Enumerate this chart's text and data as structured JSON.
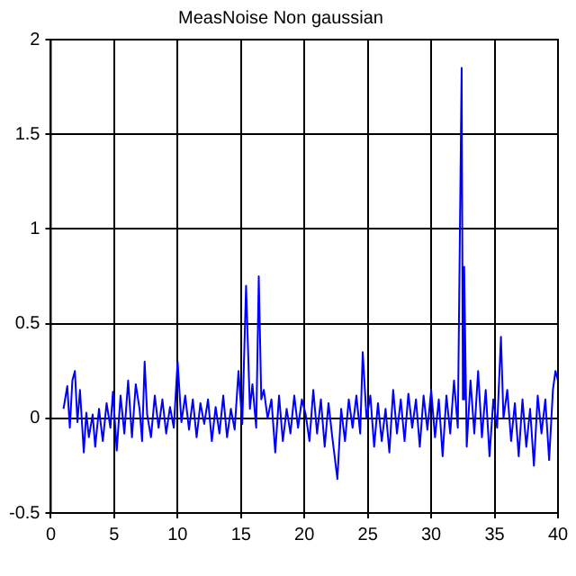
{
  "chart_data": {
    "type": "line",
    "title": "MeasNoise Non gaussian",
    "x": [
      1,
      1.3,
      1.5,
      1.7,
      1.9,
      2.1,
      2.3,
      2.6,
      2.8,
      3,
      3.3,
      3.5,
      3.8,
      4.1,
      4.4,
      4.7,
      4.9,
      5.2,
      5.5,
      5.8,
      6.1,
      6.4,
      6.7,
      7,
      7.2,
      7.4,
      7.6,
      7.9,
      8.2,
      8.5,
      8.8,
      9.1,
      9.4,
      9.7,
      10,
      10.3,
      10.6,
      10.9,
      11.2,
      11.5,
      11.8,
      12.1,
      12.4,
      12.7,
      13,
      13.3,
      13.6,
      13.9,
      14.2,
      14.5,
      14.8,
      15.1,
      15.4,
      15.7,
      15.9,
      16.2,
      16.4,
      16.6,
      16.8,
      17.1,
      17.4,
      17.7,
      18,
      18.3,
      18.6,
      18.9,
      19.2,
      19.5,
      19.8,
      20.1,
      20.4,
      20.7,
      21,
      21.3,
      21.6,
      21.9,
      22.2,
      22.6,
      22.9,
      23.2,
      23.5,
      23.8,
      24.1,
      24.4,
      24.6,
      24.9,
      25.2,
      25.5,
      25.8,
      26.1,
      26.4,
      26.7,
      27,
      27.3,
      27.6,
      27.9,
      28.2,
      28.5,
      28.8,
      29.1,
      29.4,
      29.7,
      30,
      30.3,
      30.6,
      30.9,
      31.2,
      31.5,
      31.8,
      32.1,
      32.4,
      32.5,
      32.6,
      32.8,
      33.1,
      33.4,
      33.7,
      34,
      34.3,
      34.6,
      34.9,
      35.2,
      35.5,
      35.7,
      36,
      36.3,
      36.6,
      36.9,
      37.2,
      37.5,
      37.8,
      38.1,
      38.4,
      38.7,
      39,
      39.3,
      39.6,
      39.8,
      40
    ],
    "values": [
      0.05,
      0.17,
      -0.05,
      0.2,
      0.25,
      -0.02,
      0.15,
      -0.18,
      0.03,
      -0.1,
      0.02,
      -0.15,
      0.05,
      -0.12,
      0.08,
      -0.05,
      0.14,
      -0.17,
      0.12,
      -0.08,
      0.2,
      -0.1,
      0.18,
      0.05,
      -0.12,
      0.3,
      0.02,
      -0.1,
      0.12,
      -0.05,
      0.1,
      -0.08,
      0.06,
      -0.05,
      0.3,
      -0.02,
      0.12,
      -0.06,
      0.1,
      -0.1,
      0.08,
      -0.03,
      0.1,
      -0.12,
      0.06,
      -0.08,
      0.12,
      -0.1,
      0.05,
      -0.06,
      0.25,
      -0.03,
      0.7,
      0.05,
      0.18,
      -0.05,
      0.75,
      0.1,
      0.15,
      0.0,
      0.1,
      -0.18,
      0.12,
      -0.12,
      0.05,
      -0.08,
      0.12,
      -0.05,
      0.1,
      0.02,
      -0.12,
      0.15,
      -0.08,
      0.1,
      -0.15,
      0.08,
      -0.1,
      -0.32,
      0.05,
      -0.12,
      0.1,
      -0.05,
      0.12,
      -0.08,
      0.35,
      0.0,
      0.12,
      -0.15,
      0.08,
      -0.12,
      0.05,
      -0.18,
      0.15,
      -0.08,
      0.1,
      -0.12,
      0.13,
      -0.05,
      0.1,
      -0.15,
      0.12,
      -0.06,
      0.15,
      -0.1,
      0.1,
      -0.2,
      0.12,
      -0.08,
      0.2,
      -0.05,
      1.85,
      0.1,
      0.8,
      -0.15,
      0.2,
      -0.08,
      0.25,
      -0.1,
      0.15,
      -0.2,
      0.1,
      -0.05,
      0.43,
      0.0,
      0.15,
      -0.12,
      0.08,
      -0.2,
      0.1,
      -0.15,
      0.05,
      -0.25,
      0.12,
      -0.08,
      0.1,
      -0.22,
      0.15,
      0.25,
      0.2
    ],
    "color": "#0000ff",
    "xlim": [
      0,
      40
    ],
    "ylim": [
      -0.5,
      2
    ],
    "xticks": [
      0,
      5,
      10,
      15,
      20,
      25,
      30,
      35,
      40
    ],
    "yticks": [
      -0.5,
      0,
      0.5,
      1,
      1.5,
      2
    ],
    "grid": true,
    "legend": false
  }
}
